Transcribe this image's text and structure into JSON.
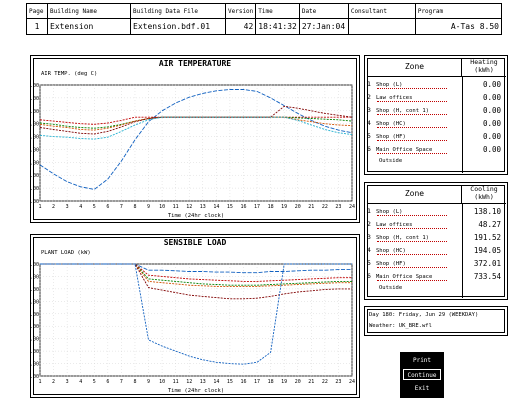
{
  "header": {
    "columns": [
      "Page",
      "Building Name",
      "Building Data File",
      "Version",
      "Time",
      "Date",
      "Consultant",
      "Program"
    ],
    "values": [
      "1",
      "Extension",
      "Extension.bdf.01",
      "42",
      "18:41:32",
      "27:Jan:04",
      "",
      "A-Tas 8.50"
    ]
  },
  "colors": {
    "blue": "#1060c0",
    "red": "#c00000",
    "green": "#008000",
    "orange": "#d05000",
    "darkred": "#800000",
    "cyan": "#20b0d0"
  },
  "heating": {
    "col_zone": "Zone",
    "col_value": "Heating\n(kWh)",
    "zones": [
      {
        "n": "1",
        "name": "Shop (L)",
        "value": "0.00"
      },
      {
        "n": "2",
        "name": "Law offices",
        "value": "0.00"
      },
      {
        "n": "3",
        "name": "Shop (H, cont 1)",
        "value": "0.00"
      },
      {
        "n": "4",
        "name": "Shop (HC)",
        "value": "0.00"
      },
      {
        "n": "5",
        "name": "Shop (HF)",
        "value": "0.00"
      },
      {
        "n": "6",
        "name": "Main Office Space",
        "value": "0.00"
      }
    ],
    "outside": "Outside"
  },
  "cooling": {
    "col_zone": "Zone",
    "col_value": "Cooling\n(kWh)",
    "zones": [
      {
        "n": "1",
        "name": "Shop (L)",
        "value": "138.10"
      },
      {
        "n": "2",
        "name": "Law offices",
        "value": "48.27"
      },
      {
        "n": "3",
        "name": "Shop (H, cont 1)",
        "value": "191.52"
      },
      {
        "n": "4",
        "name": "Shop (HC)",
        "value": "194.05"
      },
      {
        "n": "5",
        "name": "Shop (HF)",
        "value": "372.01"
      },
      {
        "n": "6",
        "name": "Main Office Space",
        "value": "733.54"
      }
    ],
    "outside": "Outside"
  },
  "day_info": {
    "day": "Day 180: Friday, Jun 29 (WEEKDAY)",
    "weather": "Weather: UK_BRE.wfl"
  },
  "buttons": [
    "Print",
    "Continue",
    "Exit"
  ],
  "chart_data": [
    {
      "type": "line",
      "title": "AIR TEMPERATURE",
      "ylabel": "AIR TEMP. (deg C)",
      "xlabel": "Time (24hr clock)",
      "xlim": [
        1,
        24
      ],
      "ylim": [
        10,
        28
      ],
      "yticks": [
        "10.00",
        "12.00",
        "14.00",
        "16.00",
        "18.00",
        "20.00",
        "22.00",
        "24.00",
        "26.00",
        "28.00"
      ],
      "xticks": [
        "1",
        "2",
        "3",
        "4",
        "5",
        "6",
        "7",
        "8",
        "9",
        "10",
        "11",
        "12",
        "13",
        "14",
        "15",
        "16",
        "17",
        "18",
        "19",
        "20",
        "21",
        "22",
        "23",
        "24"
      ],
      "x": [
        1,
        2,
        3,
        4,
        5,
        6,
        7,
        8,
        9,
        10,
        11,
        12,
        13,
        14,
        15,
        16,
        17,
        18,
        19,
        20,
        21,
        22,
        23,
        24
      ],
      "series": [
        {
          "color": "blue",
          "values": [
            15.6,
            14.2,
            13.0,
            12.2,
            11.8,
            13.4,
            16.2,
            19.5,
            22.3,
            24.0,
            25.2,
            26.1,
            26.7,
            27.1,
            27.3,
            27.3,
            27.0,
            26.0,
            24.8,
            23.6,
            22.5,
            21.6,
            21.0,
            20.6
          ]
        },
        {
          "color": "red",
          "values": [
            22.6,
            22.4,
            22.2,
            22.0,
            21.9,
            22.1,
            22.5,
            23.0,
            23.0,
            23.0,
            23.0,
            23.0,
            23.0,
            23.0,
            23.0,
            23.0,
            23.0,
            23.0,
            23.0,
            23.0,
            23.0,
            23.0,
            23.0,
            23.0
          ]
        },
        {
          "color": "green",
          "values": [
            22.1,
            21.9,
            21.6,
            21.4,
            21.3,
            21.5,
            21.9,
            22.4,
            22.8,
            23.0,
            23.0,
            23.0,
            23.0,
            23.0,
            23.0,
            23.0,
            23.0,
            23.0,
            23.0,
            22.9,
            22.8,
            22.7,
            22.6,
            22.4
          ]
        },
        {
          "color": "orange",
          "values": [
            21.9,
            21.6,
            21.4,
            21.1,
            21.0,
            21.3,
            21.8,
            22.4,
            22.8,
            23.0,
            23.0,
            23.0,
            23.0,
            23.0,
            23.0,
            23.0,
            23.0,
            23.0,
            23.0,
            22.6,
            22.3,
            22.0,
            21.8,
            21.7
          ]
        },
        {
          "color": "darkred",
          "values": [
            21.4,
            21.1,
            20.8,
            20.5,
            20.4,
            20.8,
            21.5,
            22.3,
            22.8,
            23.0,
            23.0,
            23.0,
            23.0,
            23.0,
            23.0,
            23.0,
            23.0,
            23.0,
            24.7,
            24.4,
            24.0,
            23.6,
            23.3,
            23.0
          ]
        },
        {
          "color": "cyan",
          "values": [
            20.2,
            20.0,
            19.9,
            19.7,
            19.6,
            19.9,
            20.8,
            21.8,
            22.6,
            23.0,
            23.0,
            23.0,
            23.0,
            23.0,
            23.0,
            23.0,
            23.0,
            23.0,
            23.0,
            22.5,
            21.8,
            21.1,
            20.6,
            20.3
          ]
        }
      ]
    },
    {
      "type": "line",
      "title": "SENSIBLE LOAD",
      "ylabel": "PLANT LOAD (kW)",
      "xlabel": "Time (24hr clock)",
      "xlim": [
        1,
        24
      ],
      "ylim": [
        -90,
        0
      ],
      "yticks": [
        "0.00",
        "-10.00",
        "-20.00",
        "-30.00",
        "-40.00",
        "-50.00",
        "-60.00",
        "-70.00",
        "-80.00",
        "-90.00"
      ],
      "xticks": [
        "1",
        "2",
        "3",
        "4",
        "5",
        "6",
        "7",
        "8",
        "9",
        "10",
        "11",
        "12",
        "13",
        "14",
        "15",
        "16",
        "17",
        "18",
        "19",
        "20",
        "21",
        "22",
        "23",
        "24"
      ],
      "x": [
        1,
        2,
        3,
        4,
        5,
        6,
        7,
        8,
        9,
        10,
        11,
        12,
        13,
        14,
        15,
        16,
        17,
        18,
        19,
        20,
        21,
        22,
        23,
        24
      ],
      "series": [
        {
          "color": "blue",
          "values": [
            0,
            0,
            0,
            0,
            0,
            0,
            0,
            0,
            -5,
            -5,
            -5.5,
            -6,
            -6,
            -6.5,
            -6.5,
            -7,
            -7,
            -6,
            -6,
            -5.5,
            -5,
            -5,
            -4.5,
            -4.5
          ]
        },
        {
          "color": "red",
          "values": [
            0,
            0,
            0,
            0,
            0,
            0,
            0,
            0,
            -9,
            -10,
            -11,
            -12,
            -12.5,
            -13,
            -13.5,
            -14,
            -14,
            -13.5,
            -13,
            -12.5,
            -12,
            -11.5,
            -11,
            -11
          ]
        },
        {
          "color": "green",
          "values": [
            0,
            0,
            0,
            0,
            0,
            0,
            0,
            0,
            -12,
            -13,
            -14,
            -15,
            -16,
            -16.5,
            -17,
            -17,
            -17,
            -16.5,
            -16,
            -15.5,
            -15,
            -14.5,
            -14,
            -14
          ]
        },
        {
          "color": "orange",
          "values": [
            0,
            0,
            0,
            0,
            0,
            0,
            0,
            0,
            -14,
            -15,
            -16,
            -17,
            -17.5,
            -18,
            -18,
            -18,
            -18,
            -17.5,
            -17,
            -16.5,
            -16,
            -15.5,
            -15,
            -15
          ]
        },
        {
          "color": "darkred",
          "values": [
            0,
            0,
            0,
            0,
            0,
            0,
            0,
            0,
            -19,
            -21,
            -23,
            -25,
            -26,
            -27,
            -28,
            -28,
            -27.5,
            -26,
            -24,
            -22.5,
            -21.5,
            -20.5,
            -20,
            -20
          ]
        },
        {
          "color": "blue",
          "values": [
            0,
            0,
            0,
            0,
            0,
            0,
            0,
            0,
            -61,
            -66,
            -70,
            -74,
            -77,
            -79,
            -80,
            -80.5,
            -79,
            -71,
            0,
            0,
            0,
            0,
            0,
            0
          ]
        }
      ]
    }
  ]
}
